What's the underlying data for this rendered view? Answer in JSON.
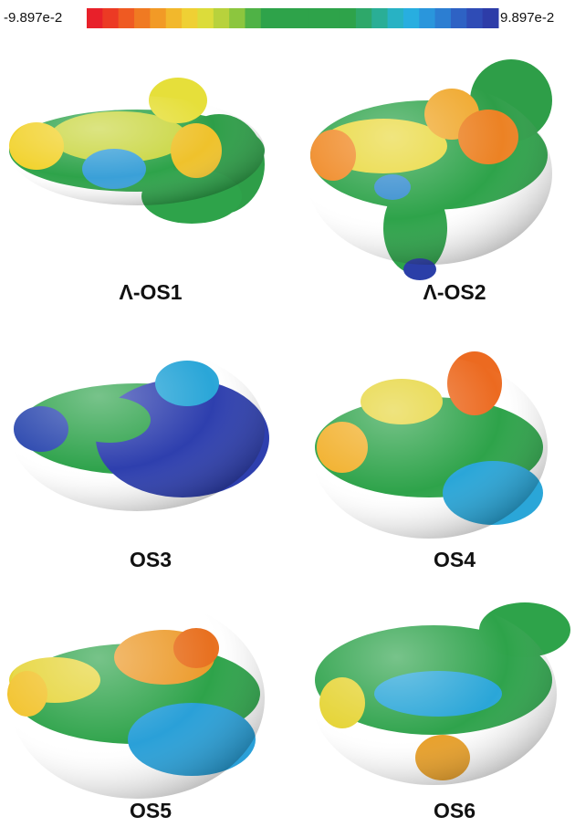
{
  "colorbar": {
    "min_label": "-9.897e-2",
    "max_label": "9.897e-2"
  },
  "panels": [
    {
      "label": "Λ-OS1"
    },
    {
      "label": "Λ-OS2"
    },
    {
      "label": "OS3"
    },
    {
      "label": "OS4"
    },
    {
      "label": "OS5"
    },
    {
      "label": "OS6"
    }
  ]
}
